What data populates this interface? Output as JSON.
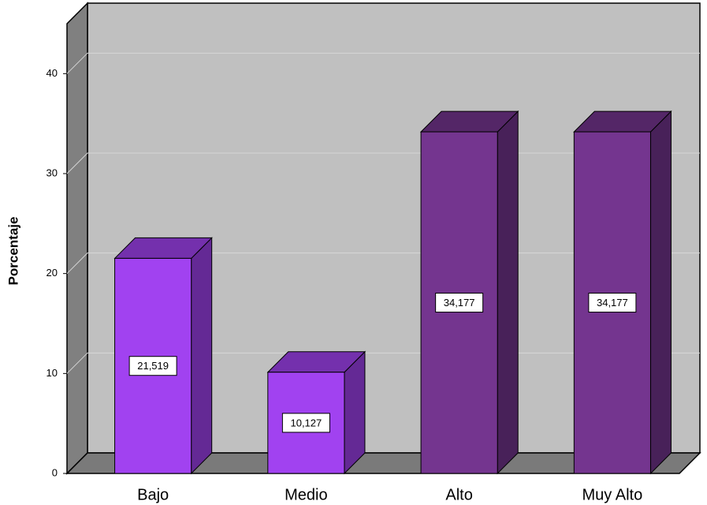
{
  "chart_data": {
    "type": "bar3d",
    "y_label": "Porcentaje",
    "categories": [
      "Bajo",
      "Medio",
      "Alto",
      "Muy Alto"
    ],
    "values": [
      21.519,
      10.127,
      34.177,
      34.177
    ],
    "value_labels": [
      "21,519",
      "10,127",
      "34,177",
      "34,177"
    ],
    "colors": [
      "#a142f0",
      "#a142f0",
      "#74358f",
      "#74358f"
    ],
    "ylim": [
      0,
      45
    ],
    "yticks": [
      0,
      10,
      20,
      30,
      40
    ],
    "grid": true
  }
}
